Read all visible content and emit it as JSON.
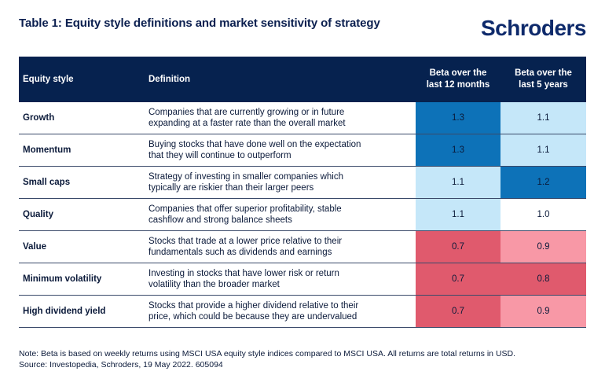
{
  "title": "Table 1: Equity style definitions and market sensitivity of strategy",
  "logo": "Schroders",
  "headers": {
    "style": "Equity style",
    "definition": "Definition",
    "beta12_line1": "Beta over the",
    "beta12_line2": "last 12 months",
    "beta5_line1": "Beta over the",
    "beta5_line2": "last 5 years"
  },
  "rows": [
    {
      "style": "Growth",
      "def1": "Companies that are currently growing or in future",
      "def2": "expanding at a faster rate than the overall market",
      "b12": "1.3",
      "b5": "1.1"
    },
    {
      "style": "Momentum",
      "def1": "Buying stocks that have done well on the expectation",
      "def2": "that they will continue to outperform",
      "b12": "1.3",
      "b5": "1.1"
    },
    {
      "style": "Small caps",
      "def1": "Strategy of investing in smaller companies which",
      "def2": "typically are riskier than their larger peers",
      "b12": "1.1",
      "b5": "1.2"
    },
    {
      "style": "Quality",
      "def1": "Companies that offer superior profitability, stable",
      "def2": "cashflow and strong balance sheets",
      "b12": "1.1",
      "b5": "1.0"
    },
    {
      "style": "Value",
      "def1": "Stocks that trade at a lower price relative to their",
      "def2": "fundamentals such as dividends and earnings",
      "b12": "0.7",
      "b5": "0.9"
    },
    {
      "style": "Minimum volatility",
      "def1": "Investing in stocks that have lower risk or return",
      "def2": "volatility than the broader market",
      "b12": "0.7",
      "b5": "0.8"
    },
    {
      "style": "High dividend yield",
      "def1": "Stocks that provide a higher dividend relative to their",
      "def2": "price, which could be because they are undervalued",
      "b12": "0.7",
      "b5": "0.9"
    }
  ],
  "colors": {
    "dark_blue": "#0d72b8",
    "light_blue": "#c5e7f9",
    "red": "#e05a6d",
    "pink": "#f898a6",
    "header": "#06224f"
  },
  "note_line1": "Note: Beta is based on weekly returns using MSCI USA equity style indices compared to MSCI USA. All returns are total returns in USD.",
  "note_line2": "Source: Investopedia, Schroders, 19 May 2022. 605094"
}
